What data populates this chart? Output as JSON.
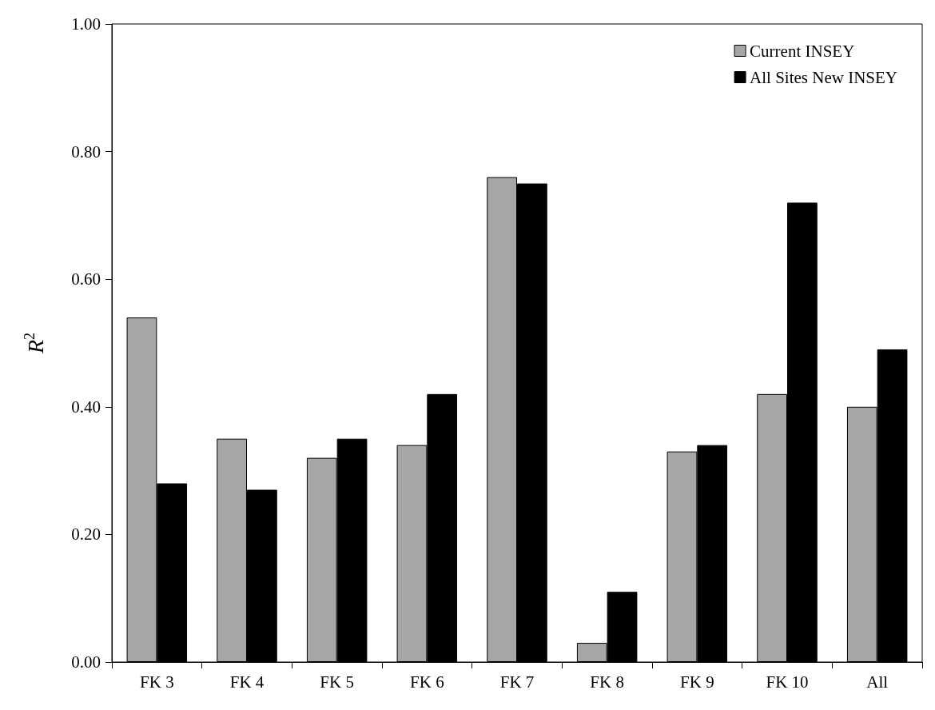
{
  "chart_data": {
    "type": "bar",
    "ylabel": "R$^{2}$",
    "categories": [
      "FK 3",
      "FK 4",
      "FK 5",
      "FK 6",
      "FK 7",
      "FK 8",
      "FK 9",
      "FK 10",
      "All"
    ],
    "series": [
      {
        "name": "Current INSEY",
        "color": "#a6a6a6",
        "values": [
          0.54,
          0.35,
          0.32,
          0.34,
          0.76,
          0.03,
          0.33,
          0.42,
          0.4
        ]
      },
      {
        "name": "All Sites New INSEY",
        "color": "#000000",
        "values": [
          0.28,
          0.27,
          0.35,
          0.42,
          0.75,
          0.11,
          0.34,
          0.72,
          0.49
        ]
      }
    ],
    "ylim": [
      0,
      1
    ],
    "yticks": [
      {
        "value": 0,
        "label": "0.00"
      },
      {
        "value": 0.2,
        "label": "0.20"
      },
      {
        "value": 0.4,
        "label": "0.40"
      },
      {
        "value": 0.6,
        "label": "0.60"
      },
      {
        "value": 0.8,
        "label": "0.80"
      },
      {
        "value": 1,
        "label": "1.00"
      }
    ],
    "grid": false,
    "legend": "top right"
  }
}
